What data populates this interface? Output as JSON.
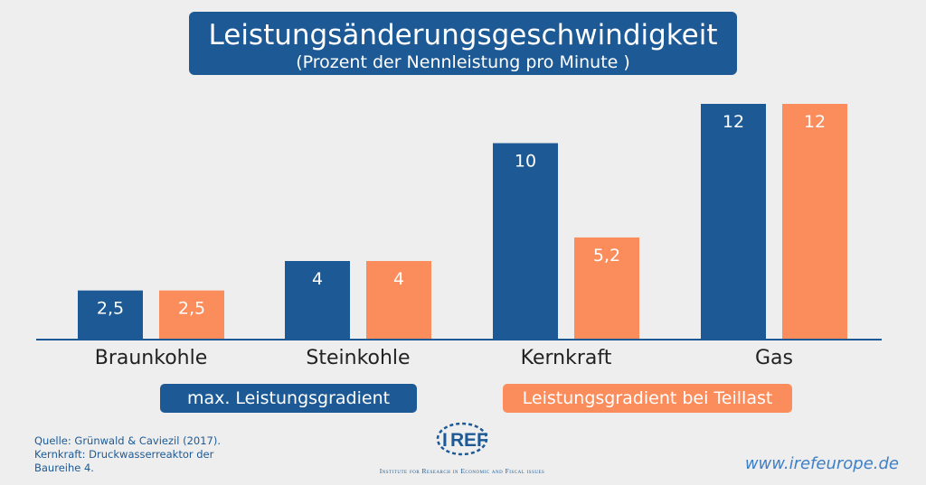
{
  "chart_data": {
    "type": "bar",
    "title": "Leistungsänderungsgeschwindigkeit",
    "subtitle": "(Prozent der Nennleistung pro Minute )",
    "categories": [
      "Braunkohle",
      "Steinkohle",
      "Kernkraft",
      "Gas"
    ],
    "series": [
      {
        "name": "max.  Leistungsgradient",
        "color": "#1d5a95",
        "values": [
          2.5,
          4,
          10,
          12
        ],
        "labels": [
          "2,5",
          "4",
          "10",
          "12"
        ]
      },
      {
        "name": "Leistungsgradient bei Teillast",
        "color": "#fb8c5b",
        "values": [
          2.5,
          4,
          5.2,
          12
        ],
        "labels": [
          "2,5",
          "4",
          "5,2",
          "12"
        ]
      }
    ],
    "ylim": [
      0,
      12
    ],
    "grid": false,
    "legend_position": "bottom"
  },
  "source": {
    "lines": [
      "Quelle: Grünwald & Caviezil (2017).",
      "Kernkraft: Druckwasserreaktor der",
      "Baureihe 4."
    ]
  },
  "logo": {
    "name": "IREF",
    "tagline": "Institute for Research in Economic and Fiscal issues"
  },
  "website": "www.irefeurope.de",
  "colors": {
    "blue": "#1d5a95",
    "orange": "#fb8c5b",
    "background": "#eeeeee"
  }
}
